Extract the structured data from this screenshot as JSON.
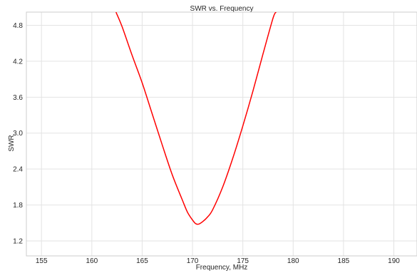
{
  "chart_data": {
    "type": "line",
    "title": "SWR vs. Frequency",
    "xlabel": "Frequency, MHz",
    "ylabel": "SWR",
    "xlim": [
      153.5,
      192.3
    ],
    "ylim": [
      0.95,
      5.02
    ],
    "xticks": [
      155,
      160,
      165,
      170,
      175,
      180,
      185,
      190
    ],
    "yticks": [
      1.2,
      1.8,
      2.4,
      3.0,
      3.6,
      4.2,
      4.8
    ],
    "ytick_labels": [
      "1.2",
      "1.8",
      "2.4",
      "3.0",
      "3.6",
      "4.2",
      "4.8"
    ],
    "grid": true,
    "series": [
      {
        "color": "#ff0000",
        "x": [
          162.4,
          163.0,
          164.0,
          165.0,
          166.0,
          167.0,
          168.0,
          169.0,
          169.5,
          170.0,
          170.3,
          170.6,
          171.0,
          171.5,
          172.0,
          173.0,
          174.0,
          175.0,
          176.0,
          177.0,
          178.0,
          178.3
        ],
        "y": [
          5.02,
          4.78,
          4.3,
          3.84,
          3.32,
          2.8,
          2.3,
          1.88,
          1.68,
          1.55,
          1.49,
          1.48,
          1.52,
          1.6,
          1.72,
          2.1,
          2.58,
          3.12,
          3.7,
          4.32,
          4.92,
          5.02
        ]
      }
    ]
  }
}
